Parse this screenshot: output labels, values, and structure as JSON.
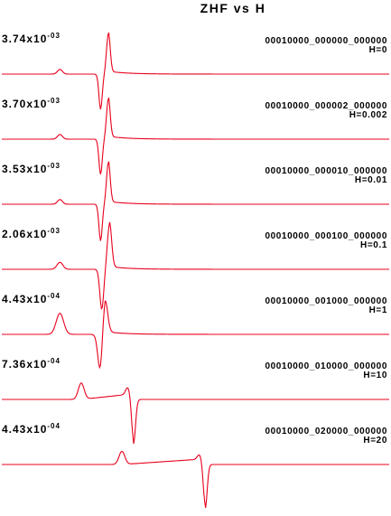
{
  "chart_data": {
    "type": "line",
    "title": "ZHF vs H",
    "xlabel": "",
    "ylabel": "",
    "grid": false,
    "color": "#e8001c",
    "series": [
      {
        "name": "00010000_000000_000000",
        "param": "H=0",
        "scale_mantissa": "3.74",
        "scale_exp": "-03",
        "features": {
          "bump_x": 0.15,
          "bump_h": 0.1,
          "dip_x": 0.255,
          "dip_h": -0.75,
          "peak_x": 0.275,
          "peak_h": 0.85,
          "width": 0.006
        }
      },
      {
        "name": "00010000_000002_000000",
        "param": "H=0.002",
        "scale_mantissa": "3.70",
        "scale_exp": "-03",
        "features": {
          "bump_x": 0.15,
          "bump_h": 0.1,
          "dip_x": 0.255,
          "dip_h": -0.75,
          "peak_x": 0.275,
          "peak_h": 0.85,
          "width": 0.006
        }
      },
      {
        "name": "00010000_000010_000000",
        "param": "H=0.01",
        "scale_mantissa": "3.53",
        "scale_exp": "-03",
        "features": {
          "bump_x": 0.15,
          "bump_h": 0.1,
          "dip_x": 0.255,
          "dip_h": -0.78,
          "peak_x": 0.275,
          "peak_h": 0.88,
          "width": 0.006
        }
      },
      {
        "name": "00010000_000100_000000",
        "param": "H=0.1",
        "scale_mantissa": "2.06",
        "scale_exp": "-03",
        "features": {
          "bump_x": 0.15,
          "bump_h": 0.15,
          "dip_x": 0.258,
          "dip_h": -0.85,
          "peak_x": 0.278,
          "peak_h": 0.95,
          "width": 0.007
        }
      },
      {
        "name": "00010000_001000_000000",
        "param": "H=1",
        "scale_mantissa": "4.43",
        "scale_exp": "-04",
        "features": {
          "bump_x": 0.15,
          "bump_h": 0.45,
          "dip_x": 0.255,
          "dip_h": -0.95,
          "peak_x": 0.265,
          "peak_h": 0.85,
          "width": 0.009
        }
      },
      {
        "name": "00010000_010000_000000",
        "param": "H=10",
        "scale_mantissa": "7.36",
        "scale_exp": "-04",
        "features": {
          "bump_x": 0.205,
          "bump_h": 0.35,
          "dip_x": 0.34,
          "dip_h": -0.95,
          "peak_x": 0.325,
          "peak_h": 0.15,
          "width": 0.007
        }
      },
      {
        "name": "00010000_020000_000000",
        "param": "H=20",
        "scale_mantissa": "4.43",
        "scale_exp": "-04",
        "features": {
          "bump_x": 0.31,
          "bump_h": 0.28,
          "dip_x": 0.525,
          "dip_h": -0.95,
          "peak_x": 0.51,
          "peak_h": 0.1,
          "width": 0.007
        }
      }
    ]
  }
}
